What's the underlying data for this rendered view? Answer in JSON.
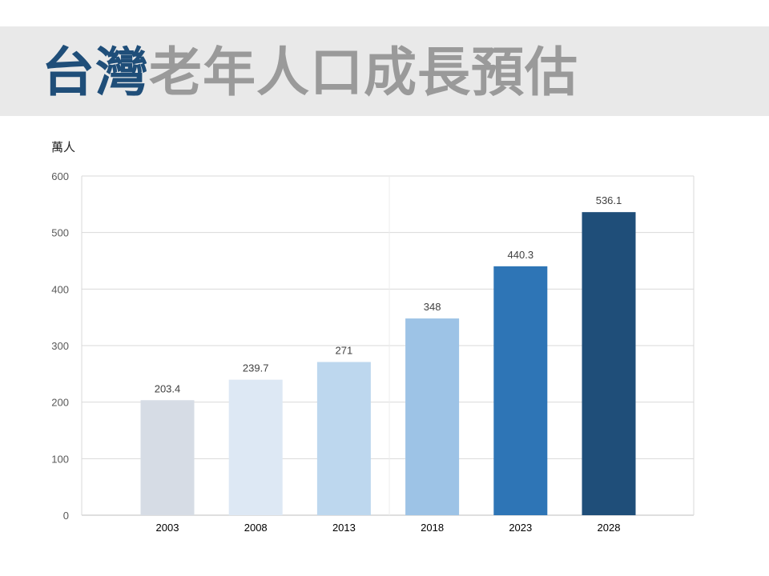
{
  "title": {
    "accent": "台灣",
    "rest": "老年人口成長預估"
  },
  "chart_data": {
    "type": "bar",
    "unit_label": "萬人",
    "categories": [
      "2003",
      "2008",
      "2013",
      "2018",
      "2023",
      "2028"
    ],
    "values": [
      203.4,
      239.7,
      271,
      348,
      440.3,
      536.1
    ],
    "data_labels": [
      "203.4",
      "239.7",
      "271",
      "348",
      "440.3",
      "536.1"
    ],
    "bar_colors": [
      "#d6dce5",
      "#dde8f4",
      "#bdd7ee",
      "#9dc3e6",
      "#2e75b6",
      "#1f4e79"
    ],
    "ylim": [
      0,
      600
    ],
    "yticks": [
      0,
      100,
      200,
      300,
      400,
      500,
      600
    ],
    "grid": true,
    "legend": "none"
  }
}
